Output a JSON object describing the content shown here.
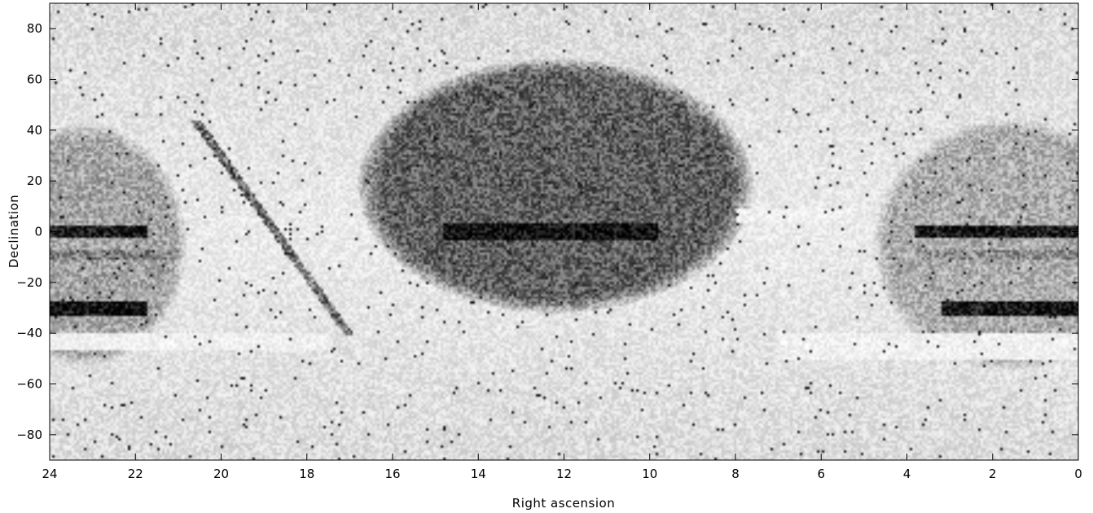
{
  "chart_data": {
    "type": "heatmap",
    "xlabel": "Right ascension",
    "ylabel": "Declination",
    "xlim": [
      24,
      0
    ],
    "ylim": [
      -90,
      90
    ],
    "x_ticks": [
      24,
      22,
      20,
      18,
      16,
      14,
      12,
      10,
      8,
      6,
      4,
      2,
      0
    ],
    "y_ticks": [
      80,
      60,
      40,
      20,
      0,
      -20,
      -40,
      -60,
      -80
    ],
    "x_tick_labels": [
      "24",
      "22",
      "20",
      "18",
      "16",
      "14",
      "12",
      "10",
      "8",
      "6",
      "4",
      "2",
      "0"
    ],
    "y_tick_labels": [
      "80",
      "60",
      "40",
      "20",
      "0",
      "−20",
      "−40",
      "−60",
      "−80"
    ],
    "colormap": "grayscale (white = low density, black = high density)",
    "grid": false,
    "regions": [
      {
        "shape": "ellipse",
        "ra_center": 12.2,
        "dec_center": 18,
        "ra_half_width": 4.6,
        "dec_half_width": 50,
        "density": 0.62
      },
      {
        "shape": "ellipse",
        "ra_center": 23.2,
        "dec_center": -5,
        "ra_half_width": 2.4,
        "dec_half_width": 48,
        "density": 0.35
      },
      {
        "shape": "ellipse",
        "ra_center": 1.6,
        "dec_center": -5,
        "ra_half_width": 3.2,
        "dec_half_width": 50,
        "density": 0.32
      },
      {
        "shape": "band",
        "ra_range": [
          14.8,
          9.8
        ],
        "dec_range": [
          -3,
          3
        ],
        "density": 0.95
      },
      {
        "shape": "band",
        "ra_range": [
          24,
          21.7
        ],
        "dec_range": [
          -2,
          2
        ],
        "density": 0.9
      },
      {
        "shape": "band",
        "ra_range": [
          3.8,
          0
        ],
        "dec_range": [
          -2,
          2
        ],
        "density": 0.9
      },
      {
        "shape": "band",
        "ra_range": [
          24,
          21.7
        ],
        "dec_range": [
          -33,
          -27
        ],
        "density": 0.95
      },
      {
        "shape": "band",
        "ra_range": [
          3.2,
          0
        ],
        "dec_range": [
          -33,
          -27
        ],
        "density": 0.92
      },
      {
        "shape": "band",
        "ra_range": [
          24,
          21
        ],
        "dec_range": [
          -11,
          -7
        ],
        "density": 0.5
      },
      {
        "shape": "band",
        "ra_range": [
          3.8,
          0
        ],
        "dec_range": [
          -11,
          -7
        ],
        "density": 0.45
      },
      {
        "shape": "stripe",
        "from": [
          20.6,
          44
        ],
        "to": [
          17.0,
          -41
        ],
        "density": 0.75
      }
    ],
    "low_density_bands": [
      {
        "ra_range": [
          24,
          17.5
        ],
        "dec_range": [
          -47,
          -40
        ]
      },
      {
        "ra_range": [
          7,
          0
        ],
        "dec_range": [
          -51,
          -40
        ]
      },
      {
        "ra_range": [
          8,
          5.2
        ],
        "dec_range": [
          3,
          9
        ]
      }
    ]
  }
}
